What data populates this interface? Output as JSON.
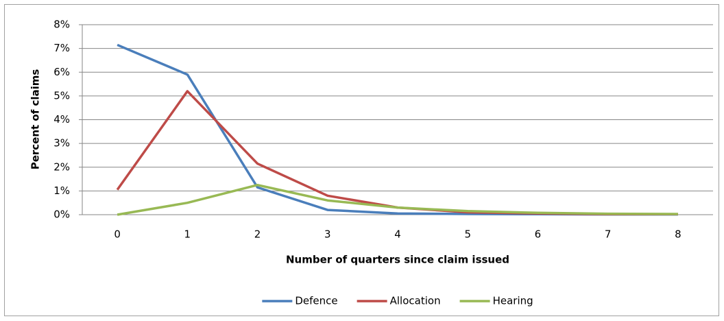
{
  "chart_data": {
    "type": "line",
    "x_label": "Number of quarters since claim issued",
    "y_label": "Percent of claims",
    "categories": [
      "0",
      "1",
      "2",
      "3",
      "4",
      "5",
      "6",
      "7",
      "8"
    ],
    "series": [
      {
        "name": "Defence",
        "color": "#4a7ebb",
        "values": [
          7.15,
          5.9,
          1.15,
          0.2,
          0.05,
          0.03,
          0.02,
          0.01,
          0.01
        ]
      },
      {
        "name": "Allocation",
        "color": "#be4b48",
        "values": [
          1.05,
          5.2,
          2.15,
          0.8,
          0.3,
          0.1,
          0.05,
          0.02,
          0.02
        ]
      },
      {
        "name": "Hearing",
        "color": "#98b954",
        "values": [
          0,
          0.5,
          1.25,
          0.6,
          0.3,
          0.15,
          0.08,
          0.04,
          0.03
        ]
      }
    ],
    "ylim": [
      0,
      8
    ],
    "yticks": [
      {
        "value": 0,
        "label": "0%"
      },
      {
        "value": 1,
        "label": "1%"
      },
      {
        "value": 2,
        "label": "2%"
      },
      {
        "value": 3,
        "label": "3%"
      },
      {
        "value": 4,
        "label": "4%"
      },
      {
        "value": 5,
        "label": "5%"
      },
      {
        "value": 6,
        "label": "6%"
      },
      {
        "value": 7,
        "label": "7%"
      },
      {
        "value": 8,
        "label": "8%"
      }
    ],
    "grid": true,
    "legend": "bottom"
  }
}
